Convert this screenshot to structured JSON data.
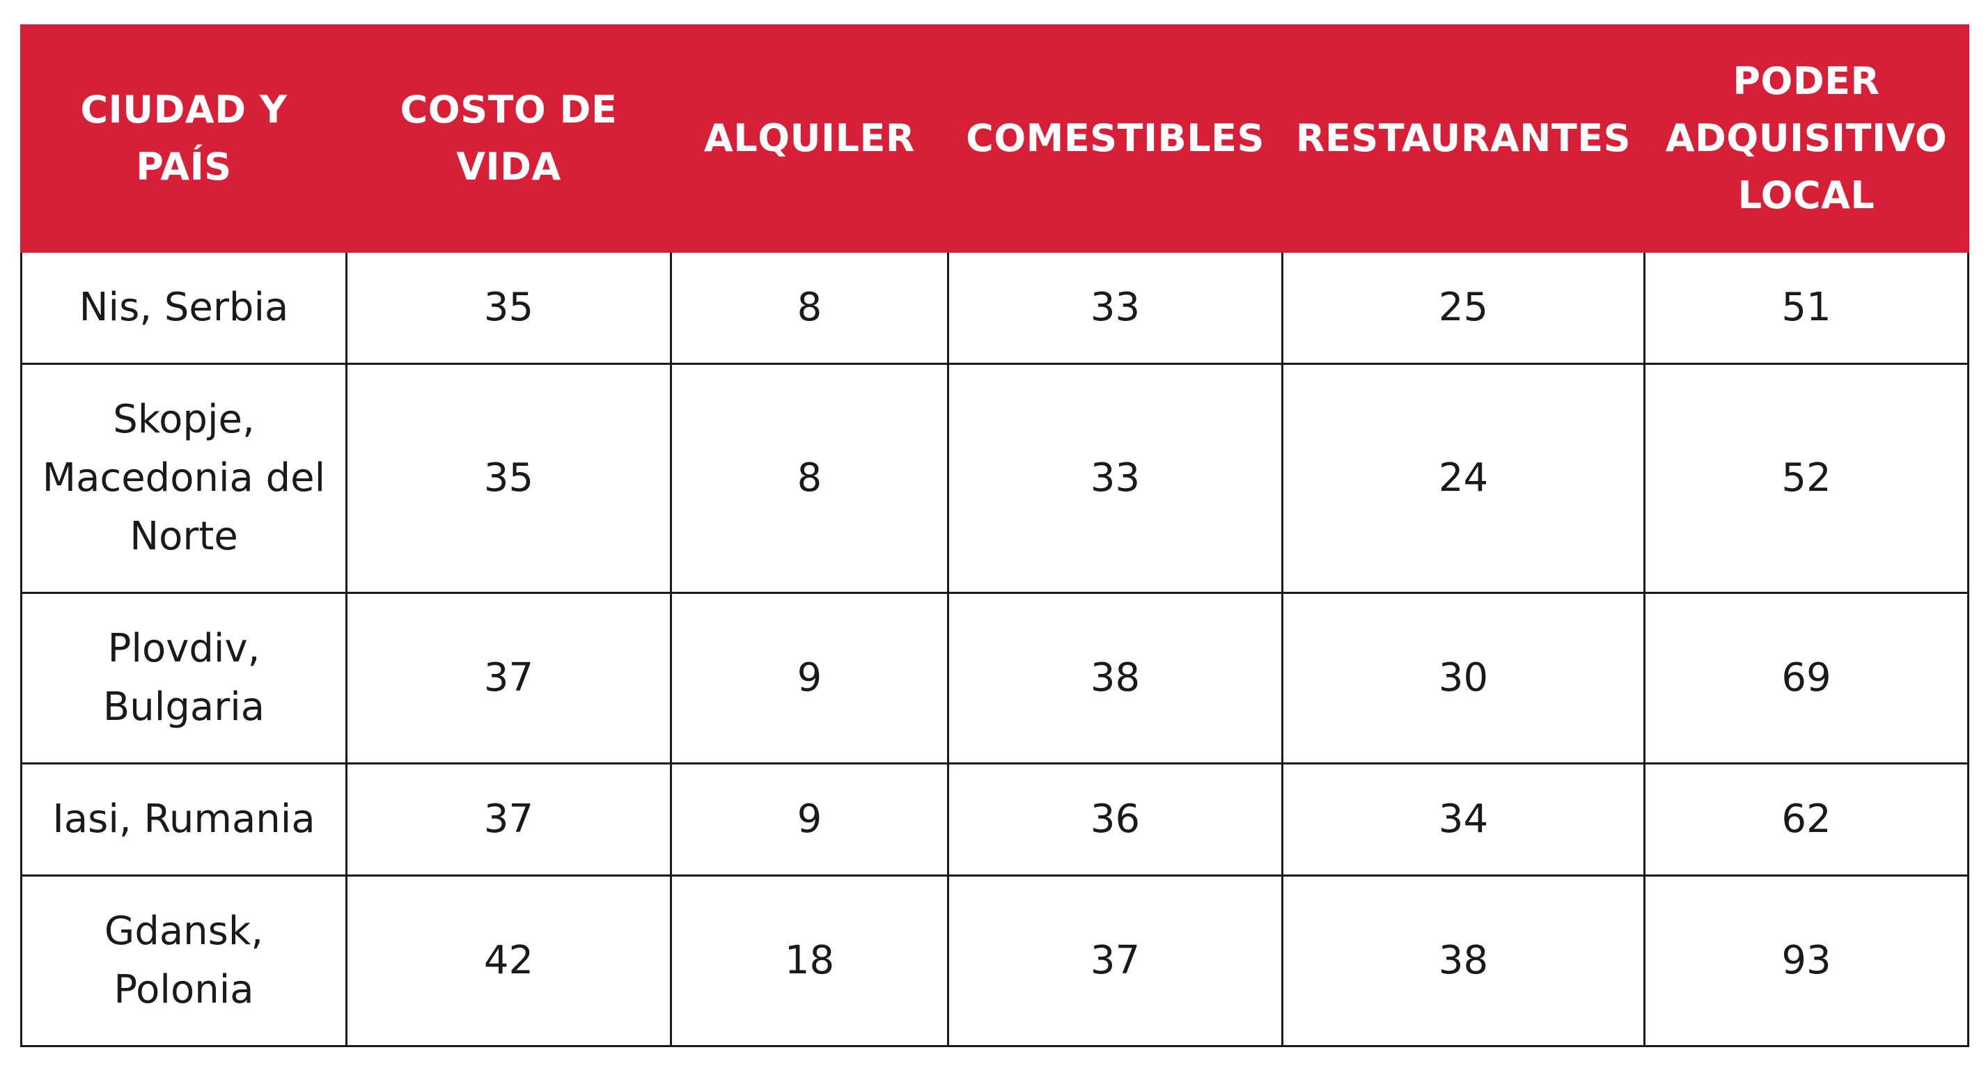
{
  "table": {
    "headers": [
      "CIUDAD Y PAÍS",
      "COSTO DE VIDA",
      "ALQUILER",
      "COMESTIBLES",
      "RESTAURANTES",
      "PODER ADQUISITIVO LOCAL"
    ],
    "rows": [
      [
        "Nis, Serbia",
        "35",
        "8",
        "33",
        "25",
        "51"
      ],
      [
        "Skopje, Macedonia del Norte",
        "35",
        "8",
        "33",
        "24",
        "52"
      ],
      [
        "Plovdiv, Bulgaria",
        "37",
        "9",
        "38",
        "30",
        "69"
      ],
      [
        "Iasi, Rumania",
        "37",
        "9",
        "36",
        "34",
        "62"
      ],
      [
        "Gdansk, Polonia",
        "42",
        "18",
        "37",
        "38",
        "93"
      ]
    ]
  },
  "colors": {
    "header_background": "#d81f38",
    "header_text": "#ffffff",
    "border": "#1a1a1a"
  }
}
